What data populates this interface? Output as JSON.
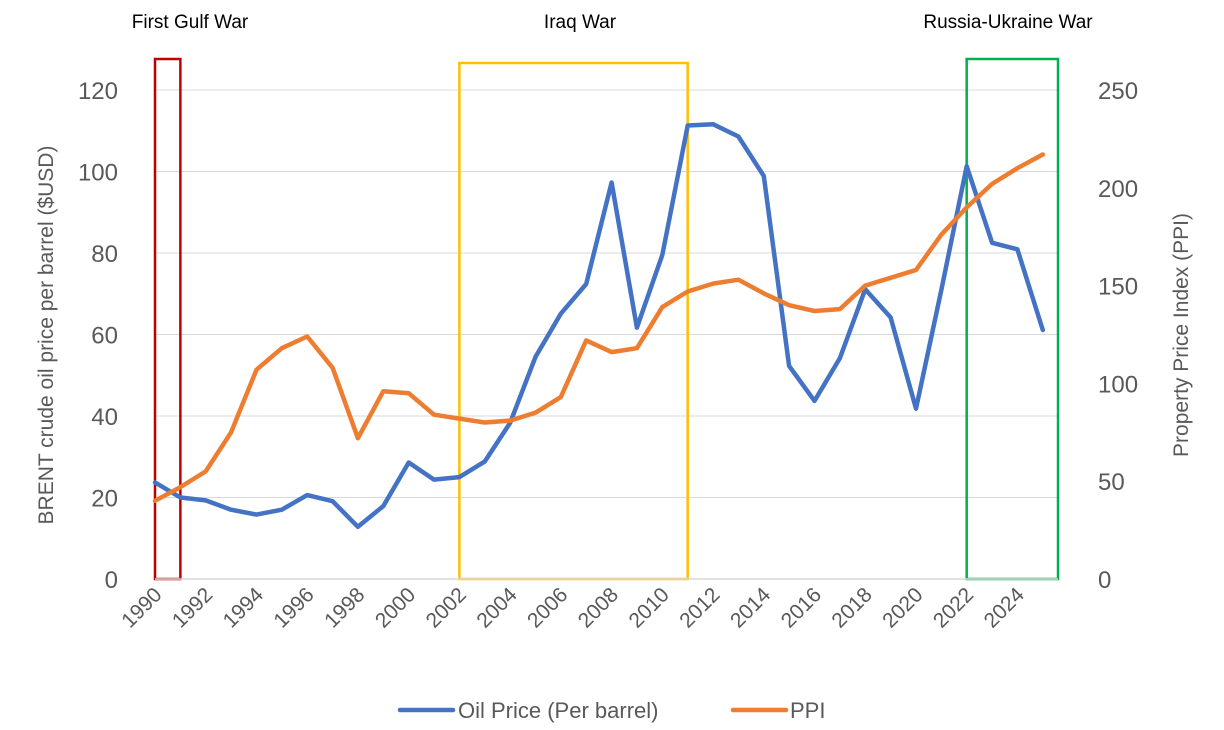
{
  "chart_data": {
    "type": "line",
    "x": [
      1990,
      1991,
      1992,
      1993,
      1994,
      1995,
      1996,
      1997,
      1998,
      1999,
      2000,
      2001,
      2002,
      2003,
      2004,
      2005,
      2006,
      2007,
      2008,
      2009,
      2010,
      2011,
      2012,
      2013,
      2014,
      2015,
      2016,
      2017,
      2018,
      2019,
      2020,
      2021,
      2022,
      2023,
      2024,
      2025
    ],
    "x_ticks": [
      "1990",
      "1992",
      "1994",
      "1996",
      "1998",
      "2000",
      "2002",
      "2004",
      "2006",
      "2008",
      "2010",
      "2012",
      "2014",
      "2016",
      "2018",
      "2020",
      "2022",
      "2024"
    ],
    "series": [
      {
        "name": "Oil Price (Per barrel)",
        "axis": "left",
        "color": "#4472c4",
        "values": [
          23.7,
          20.0,
          19.3,
          17.0,
          15.8,
          17.0,
          20.6,
          19.1,
          12.8,
          17.9,
          28.6,
          24.4,
          25.0,
          28.8,
          38.3,
          54.5,
          65.1,
          72.4,
          97.3,
          61.7,
          79.5,
          111.3,
          111.6,
          108.6,
          98.9,
          52.3,
          43.7,
          54.2,
          71.1,
          64.2,
          41.8,
          70.9,
          101.3,
          82.5,
          80.9,
          61.1
        ]
      },
      {
        "name": "PPI",
        "axis": "right",
        "color": "#ed7d31",
        "values": [
          40,
          47,
          55,
          75,
          107,
          118,
          124,
          108,
          72,
          96,
          95,
          84,
          82,
          80,
          81,
          85,
          93,
          122,
          116,
          118,
          139,
          147,
          151,
          153,
          146,
          140,
          137,
          138,
          150,
          154,
          158,
          176,
          190,
          202,
          210,
          217
        ]
      }
    ],
    "ylabel": "BRENT crude oil price per barrel ($USD)",
    "y2label": "Property Price Index (PPI)",
    "ylim": [
      0,
      120
    ],
    "y_ticks": [
      "0",
      "20",
      "40",
      "60",
      "80",
      "100",
      "120"
    ],
    "y2lim": [
      0,
      250
    ],
    "y2_ticks": [
      "0",
      "50",
      "100",
      "150",
      "200",
      "250"
    ],
    "grid": true,
    "legend": "bottom",
    "annotations": [
      {
        "label": "First Gulf War",
        "x_start": 1990,
        "x_end": 1991,
        "color": "#c00000"
      },
      {
        "label": "Iraq War",
        "x_start": 2002,
        "x_end": 2011,
        "color": "#ffc000"
      },
      {
        "label": "Russia-Ukraine War",
        "x_start": 2022,
        "x_end": 2026,
        "color": "#00b050"
      }
    ]
  }
}
